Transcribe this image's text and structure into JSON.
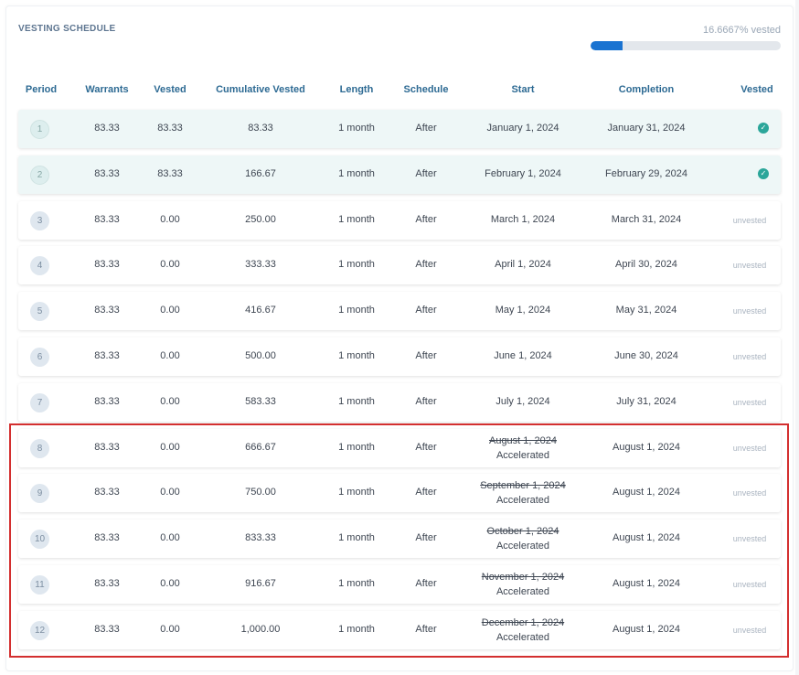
{
  "section_title": "VESTING SCHEDULE",
  "progress": {
    "label": "16.6667% vested",
    "fraction": 0.166667,
    "color": "#1a73d1"
  },
  "columns": [
    "Period",
    "Warrants",
    "Vested",
    "Cumulative Vested",
    "Length",
    "Schedule",
    "Start",
    "Completion",
    "Vested"
  ],
  "rows": [
    {
      "period": "1",
      "warrants": "83.33",
      "vested": "83.33",
      "cumulative": "83.33",
      "length": "1 month",
      "schedule": "After",
      "start": "January 1, 2024",
      "accelerated": false,
      "completion": "January 31, 2024",
      "status": "vested"
    },
    {
      "period": "2",
      "warrants": "83.33",
      "vested": "83.33",
      "cumulative": "166.67",
      "length": "1 month",
      "schedule": "After",
      "start": "February 1, 2024",
      "accelerated": false,
      "completion": "February 29, 2024",
      "status": "vested"
    },
    {
      "period": "3",
      "warrants": "83.33",
      "vested": "0.00",
      "cumulative": "250.00",
      "length": "1 month",
      "schedule": "After",
      "start": "March 1, 2024",
      "accelerated": false,
      "completion": "March 31, 2024",
      "status": "unvested"
    },
    {
      "period": "4",
      "warrants": "83.33",
      "vested": "0.00",
      "cumulative": "333.33",
      "length": "1 month",
      "schedule": "After",
      "start": "April 1, 2024",
      "accelerated": false,
      "completion": "April 30, 2024",
      "status": "unvested"
    },
    {
      "period": "5",
      "warrants": "83.33",
      "vested": "0.00",
      "cumulative": "416.67",
      "length": "1 month",
      "schedule": "After",
      "start": "May 1, 2024",
      "accelerated": false,
      "completion": "May 31, 2024",
      "status": "unvested"
    },
    {
      "period": "6",
      "warrants": "83.33",
      "vested": "0.00",
      "cumulative": "500.00",
      "length": "1 month",
      "schedule": "After",
      "start": "June 1, 2024",
      "accelerated": false,
      "completion": "June 30, 2024",
      "status": "unvested"
    },
    {
      "period": "7",
      "warrants": "83.33",
      "vested": "0.00",
      "cumulative": "583.33",
      "length": "1 month",
      "schedule": "After",
      "start": "July 1, 2024",
      "accelerated": false,
      "completion": "July 31, 2024",
      "status": "unvested"
    },
    {
      "period": "8",
      "warrants": "83.33",
      "vested": "0.00",
      "cumulative": "666.67",
      "length": "1 month",
      "schedule": "After",
      "start": "August 1, 2024",
      "accelerated": true,
      "accelerated_label": "Accelerated",
      "completion": "August 1, 2024",
      "status": "unvested"
    },
    {
      "period": "9",
      "warrants": "83.33",
      "vested": "0.00",
      "cumulative": "750.00",
      "length": "1 month",
      "schedule": "After",
      "start": "September 1, 2024",
      "accelerated": true,
      "accelerated_label": "Accelerated",
      "completion": "August 1, 2024",
      "status": "unvested"
    },
    {
      "period": "10",
      "warrants": "83.33",
      "vested": "0.00",
      "cumulative": "833.33",
      "length": "1 month",
      "schedule": "After",
      "start": "October 1, 2024",
      "accelerated": true,
      "accelerated_label": "Accelerated",
      "completion": "August 1, 2024",
      "status": "unvested"
    },
    {
      "period": "11",
      "warrants": "83.33",
      "vested": "0.00",
      "cumulative": "916.67",
      "length": "1 month",
      "schedule": "After",
      "start": "November 1, 2024",
      "accelerated": true,
      "accelerated_label": "Accelerated",
      "completion": "August 1, 2024",
      "status": "unvested"
    },
    {
      "period": "12",
      "warrants": "83.33",
      "vested": "0.00",
      "cumulative": "1,000.00",
      "length": "1 month",
      "schedule": "After",
      "start": "December 1, 2024",
      "accelerated": true,
      "accelerated_label": "Accelerated",
      "completion": "August 1, 2024",
      "status": "unvested"
    }
  ],
  "icons": {
    "vested_status": "check-circle-icon"
  },
  "colors": {
    "highlight_border": "#d32f2f",
    "vested_check": "#2ba69a",
    "vested_row_bg": "#eef7f7"
  }
}
